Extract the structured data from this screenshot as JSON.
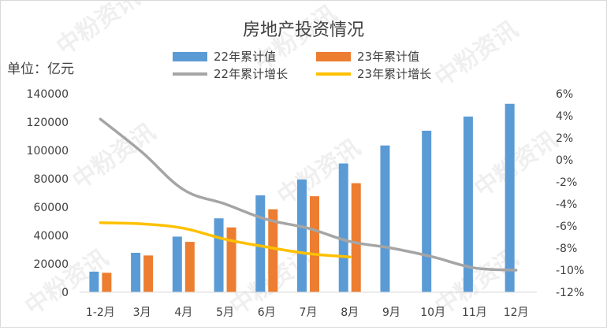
{
  "chart_data": {
    "type": "bar",
    "title": "房地产投资情况",
    "unit_label": "单位：亿元",
    "categories": [
      "1-2月",
      "3月",
      "4月",
      "5月",
      "6月",
      "7月",
      "8月",
      "9月",
      "10月",
      "11月",
      "12月"
    ],
    "series": [
      {
        "name": "22年累计值",
        "type": "bar",
        "axis": "left",
        "color": "#5b9bd5",
        "values": [
          14500,
          27800,
          39200,
          52100,
          68300,
          79500,
          90800,
          103500,
          113900,
          123900,
          132900
        ]
      },
      {
        "name": "23年累计值",
        "type": "bar",
        "axis": "left",
        "color": "#ed7d31",
        "values": [
          13700,
          25900,
          35500,
          45700,
          58500,
          67700,
          76900,
          null,
          null,
          null,
          null
        ]
      },
      {
        "name": "22年累计增长",
        "type": "line",
        "axis": "right",
        "color": "#a5a5a5",
        "values": [
          3.7,
          0.7,
          -2.7,
          -4.0,
          -5.4,
          -6.2,
          -7.4,
          -8.0,
          -8.8,
          -9.8,
          -10.0
        ]
      },
      {
        "name": "23年累计增长",
        "type": "line",
        "axis": "right",
        "color": "#ffc000",
        "values": [
          -5.7,
          -5.8,
          -6.2,
          -7.2,
          -7.9,
          -8.5,
          -8.8,
          null,
          null,
          null,
          null
        ]
      }
    ],
    "left_axis": {
      "min": 0,
      "max": 140000,
      "step": 20000,
      "tick_labels": [
        "0",
        "20000",
        "40000",
        "60000",
        "80000",
        "100000",
        "120000",
        "140000"
      ]
    },
    "right_axis": {
      "min": -12,
      "max": 6,
      "step": 2,
      "tick_labels": [
        "-12%",
        "-10%",
        "-8%",
        "-6%",
        "-4%",
        "-2%",
        "0%",
        "2%",
        "4%",
        "6%"
      ]
    },
    "legend_position": "top",
    "grid": false
  },
  "watermark_text": "中粉资讯"
}
